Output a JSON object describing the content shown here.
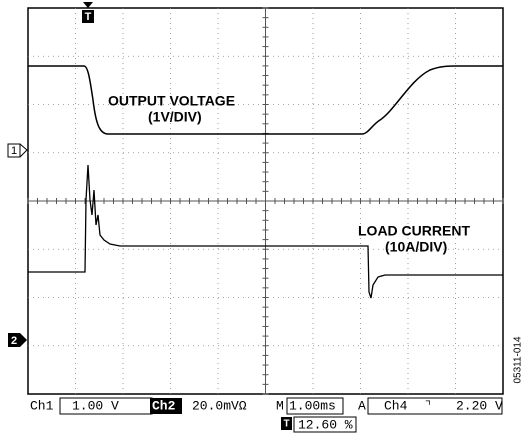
{
  "trigger_marker": "T",
  "channel_markers": [
    "1",
    "2"
  ],
  "annotations": [
    {
      "title": "OUTPUT VOLTAGE",
      "scale": "(1V/DIV)"
    },
    {
      "title": "LOAD CURRENT",
      "scale": "(10A/DIV)"
    }
  ],
  "status_bar": {
    "ch1_label": "Ch1",
    "ch1_scale": "1.00 V",
    "ch2_label": "Ch2",
    "ch2_scale": "20.0mVΩ",
    "time_label": "M",
    "time_scale": "1.00ms",
    "trigger_label": "A",
    "trigger_channel": "Ch4",
    "trigger_slope": "⌝",
    "trigger_level": "2.20 V"
  },
  "trigger_position": {
    "marker": "T",
    "value": "12.60 %"
  },
  "figure_id": "05311-014"
}
